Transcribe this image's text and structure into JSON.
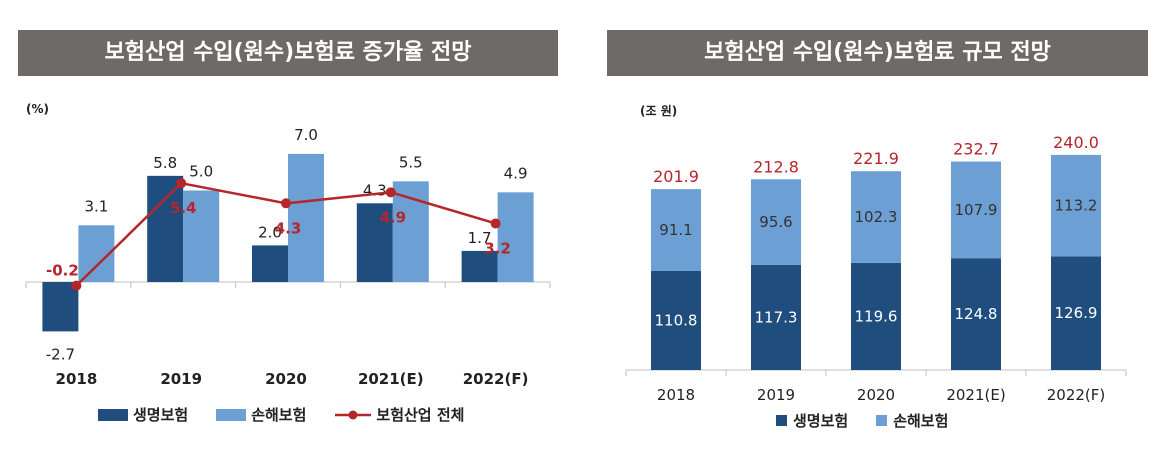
{
  "left_panel": {
    "title": "보험산업 수입(원수)보험료 증가율 전망",
    "unit": "(%)",
    "legend": [
      "생명보험",
      "손해보험",
      "보험산업 전체"
    ]
  },
  "right_panel": {
    "title": "보험산업 수입(원수)보험료 규모 전망",
    "unit": "(조 원)",
    "legend": [
      "생명보험",
      "손해보험"
    ]
  },
  "colors": {
    "life": "#1f4e7e",
    "non_life": "#6c9fd4",
    "total": "#b5262a",
    "title_bg": "#6e6a68"
  },
  "chart_data": [
    {
      "type": "bar",
      "title": "보험산업 수입(원수)보험료 증가율 전망",
      "ylabel": "(%)",
      "categories": [
        "2018",
        "2019",
        "2020",
        "2021(E)",
        "2022(F)"
      ],
      "series": [
        {
          "name": "생명보험",
          "kind": "bar",
          "values": [
            -2.7,
            5.8,
            2.0,
            4.3,
            1.7
          ],
          "labels": [
            "-2.7",
            "5.8",
            "2.0",
            "4.3",
            "1.7"
          ]
        },
        {
          "name": "손해보험",
          "kind": "bar",
          "values": [
            3.1,
            5.0,
            7.0,
            5.5,
            4.9
          ],
          "labels": [
            "3.1",
            "5.0",
            "7.0",
            "5.5",
            "4.9"
          ]
        },
        {
          "name": "보험산업 전체",
          "kind": "line",
          "values": [
            -0.2,
            5.4,
            4.3,
            4.9,
            3.2
          ],
          "labels": [
            "-0.2",
            "5.4",
            "4.3",
            "4.9",
            "3.2"
          ]
        }
      ],
      "ylim": [
        -3.5,
        9.5
      ],
      "grid": false,
      "legend_position": "bottom"
    },
    {
      "type": "bar",
      "stacked": true,
      "title": "보험산업 수입(원수)보험료 규모 전망",
      "ylabel": "(조 원)",
      "categories": [
        "2018",
        "2019",
        "2020",
        "2021(E)",
        "2022(F)"
      ],
      "series": [
        {
          "name": "생명보험",
          "values": [
            110.8,
            117.3,
            119.6,
            124.8,
            126.9
          ],
          "labels": [
            "110.8",
            "117.3",
            "119.6",
            "124.8",
            "126.9"
          ]
        },
        {
          "name": "손해보험",
          "values": [
            91.1,
            95.6,
            102.3,
            107.9,
            113.2
          ],
          "labels": [
            "91.1",
            "95.6",
            "102.3",
            "107.9",
            "113.2"
          ]
        }
      ],
      "totals": [
        "201.9",
        "212.8",
        "221.9",
        "232.7",
        "240.0"
      ],
      "ylim": [
        0,
        270
      ],
      "grid": false,
      "legend_position": "bottom"
    }
  ]
}
